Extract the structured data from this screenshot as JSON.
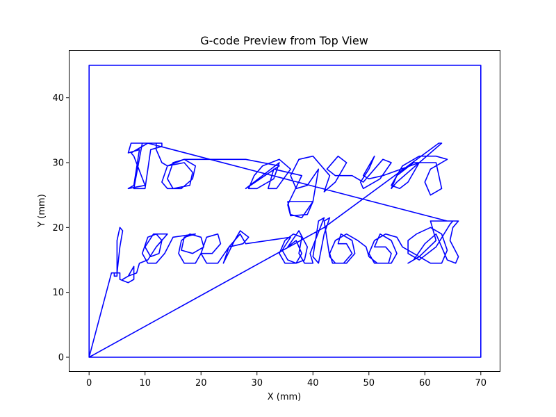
{
  "chart_data": {
    "type": "line",
    "title": "G-code Preview from Top View",
    "xlabel": "X (mm)",
    "ylabel": "Y (mm)",
    "xlim": [
      -3.5,
      73.5
    ],
    "ylim": [
      -2.25,
      47.25
    ],
    "grid": false,
    "legend": "none",
    "series_color": "#0000ff",
    "xticks": [
      0,
      10,
      20,
      30,
      40,
      50,
      60,
      70
    ],
    "yticks": [
      0,
      10,
      20,
      30,
      40
    ],
    "text_content": "To a great year ahead",
    "series": [
      {
        "points": [
          [
            0,
            0
          ],
          [
            0,
            45
          ],
          [
            70,
            45
          ],
          [
            70,
            0
          ],
          [
            0,
            0
          ],
          [
            42,
            20
          ],
          [
            62.5,
            33
          ],
          [
            63,
            33
          ],
          [
            55,
            27
          ],
          [
            54,
            26
          ],
          [
            55,
            28
          ],
          [
            56,
            29.5
          ],
          [
            59,
            31
          ],
          [
            62,
            31
          ],
          [
            64,
            30.5
          ],
          [
            61,
            29
          ],
          [
            60,
            27
          ],
          [
            61,
            25
          ],
          [
            63,
            26
          ],
          [
            62,
            30
          ],
          [
            58,
            30
          ],
          [
            55,
            28
          ],
          [
            54,
            26.5
          ],
          [
            55.5,
            26
          ],
          [
            57,
            27
          ],
          [
            59,
            30
          ],
          [
            52.5,
            28
          ],
          [
            50,
            27.5
          ],
          [
            49,
            28
          ],
          [
            51,
            31
          ],
          [
            50,
            29
          ],
          [
            48.5,
            27
          ],
          [
            49,
            26
          ],
          [
            52,
            27.5
          ],
          [
            54,
            30
          ],
          [
            52.5,
            30.5
          ],
          [
            51,
            29
          ],
          [
            49,
            27
          ],
          [
            47,
            28
          ],
          [
            44,
            28
          ],
          [
            42.5,
            29
          ],
          [
            44.5,
            31
          ],
          [
            46,
            30
          ],
          [
            44,
            27
          ],
          [
            42,
            25.5
          ],
          [
            43,
            28
          ],
          [
            40,
            31
          ],
          [
            37.5,
            30.5
          ],
          [
            36,
            28
          ],
          [
            37,
            26
          ],
          [
            39,
            26.5
          ],
          [
            41,
            29
          ],
          [
            40,
            24
          ],
          [
            38,
            21.5
          ],
          [
            36,
            22
          ],
          [
            35.5,
            24
          ],
          [
            40,
            24
          ],
          [
            39,
            22
          ],
          [
            36,
            21.8
          ],
          [
            35.5,
            23.5
          ],
          [
            38,
            28
          ],
          [
            33,
            29
          ],
          [
            32,
            26
          ],
          [
            33.5,
            26
          ],
          [
            36,
            29
          ],
          [
            34,
            30.5
          ],
          [
            31,
            29.5
          ],
          [
            29.5,
            28
          ],
          [
            28.5,
            26
          ],
          [
            30,
            26
          ],
          [
            33,
            27.5
          ],
          [
            34,
            30
          ],
          [
            28,
            26
          ],
          [
            34,
            29.5
          ],
          [
            28,
            30.5
          ],
          [
            22,
            30.5
          ],
          [
            17,
            30.5
          ],
          [
            14,
            29.5
          ],
          [
            13,
            27
          ],
          [
            14,
            26
          ],
          [
            16.5,
            26
          ],
          [
            18.5,
            27.5
          ],
          [
            19,
            29.5
          ],
          [
            17,
            30.5
          ],
          [
            15,
            30
          ],
          [
            14,
            27.5
          ],
          [
            15,
            26
          ],
          [
            18,
            26.5
          ],
          [
            18.5,
            28.5
          ],
          [
            17,
            30
          ],
          [
            14,
            29.5
          ],
          [
            13,
            30
          ],
          [
            12,
            32
          ],
          [
            12,
            33
          ],
          [
            9.5,
            33
          ],
          [
            8,
            26
          ],
          [
            10,
            26
          ],
          [
            11,
            32
          ],
          [
            13,
            32.5
          ],
          [
            13,
            33
          ],
          [
            7.5,
            33
          ],
          [
            7,
            31.5
          ],
          [
            9,
            32
          ],
          [
            8,
            26.5
          ],
          [
            7,
            26
          ],
          [
            10,
            26.5
          ],
          [
            8,
            31
          ],
          [
            7.5,
            31.5
          ],
          [
            10.5,
            33
          ],
          [
            64,
            21
          ],
          [
            66,
            21
          ],
          [
            65,
            20
          ],
          [
            64.5,
            18
          ],
          [
            66,
            15.5
          ],
          [
            65.5,
            14.5
          ],
          [
            64,
            15
          ],
          [
            62,
            19
          ],
          [
            60,
            17.5
          ],
          [
            58,
            15
          ],
          [
            57,
            14.5
          ],
          [
            59,
            15.5
          ],
          [
            62,
            18
          ],
          [
            61,
            21
          ],
          [
            65,
            21
          ],
          [
            64.5,
            20.5
          ],
          [
            62,
            17
          ],
          [
            59,
            15
          ],
          [
            57,
            16
          ],
          [
            57,
            18
          ],
          [
            58.5,
            19
          ],
          [
            61,
            20
          ],
          [
            63,
            19
          ],
          [
            64,
            16.5
          ],
          [
            63,
            14.5
          ],
          [
            61,
            14.5
          ],
          [
            56,
            17
          ],
          [
            55,
            18.5
          ],
          [
            53,
            19
          ],
          [
            51,
            18
          ],
          [
            50,
            16
          ],
          [
            51,
            14.5
          ],
          [
            53.5,
            14.5
          ],
          [
            54,
            16
          ],
          [
            53,
            17
          ],
          [
            51,
            17
          ],
          [
            52,
            19
          ],
          [
            54,
            18
          ],
          [
            55,
            16
          ],
          [
            54,
            14.5
          ],
          [
            51.5,
            14.5
          ],
          [
            50,
            15.5
          ],
          [
            49.5,
            17
          ],
          [
            48,
            18
          ],
          [
            46,
            19
          ],
          [
            44,
            18
          ],
          [
            43,
            16
          ],
          [
            43.5,
            14.5
          ],
          [
            45.5,
            14.5
          ],
          [
            47,
            16
          ],
          [
            46,
            17.5
          ],
          [
            44.5,
            17.5
          ],
          [
            45,
            19
          ],
          [
            47,
            18
          ],
          [
            47.5,
            16
          ],
          [
            46,
            14.5
          ],
          [
            44,
            14.5
          ],
          [
            43,
            15.5
          ],
          [
            42,
            21
          ],
          [
            43,
            21.5
          ],
          [
            42,
            19
          ],
          [
            41,
            14.5
          ],
          [
            40,
            15.5
          ],
          [
            41,
            21
          ],
          [
            42,
            21.5
          ],
          [
            39.5,
            16
          ],
          [
            40,
            14.5
          ],
          [
            38.5,
            14.5
          ],
          [
            37.5,
            16
          ],
          [
            38,
            18.5
          ],
          [
            36.5,
            19
          ],
          [
            35,
            18
          ],
          [
            34,
            16
          ],
          [
            35,
            14.5
          ],
          [
            37,
            14.5
          ],
          [
            38,
            16
          ],
          [
            37,
            18
          ],
          [
            35.5,
            17
          ],
          [
            37.5,
            19.5
          ],
          [
            39,
            17
          ],
          [
            38.5,
            15
          ],
          [
            37,
            14.5
          ],
          [
            35.5,
            15
          ],
          [
            34.5,
            16.5
          ],
          [
            36,
            18.5
          ],
          [
            28,
            17.5
          ],
          [
            27,
            19
          ],
          [
            25,
            17
          ],
          [
            24,
            14.5
          ],
          [
            26,
            18
          ],
          [
            27,
            19.5
          ],
          [
            28.5,
            18.5
          ],
          [
            27.5,
            17.5
          ],
          [
            25,
            17
          ],
          [
            23,
            14.5
          ],
          [
            21,
            14.5
          ],
          [
            20,
            16
          ],
          [
            21,
            18.5
          ],
          [
            23,
            19
          ],
          [
            23.5,
            17.5
          ],
          [
            22,
            16
          ],
          [
            20,
            16
          ],
          [
            19,
            14.5
          ],
          [
            17,
            14.5
          ],
          [
            16,
            16
          ],
          [
            16.5,
            18
          ],
          [
            18,
            19
          ],
          [
            20,
            18.5
          ],
          [
            20.5,
            17
          ],
          [
            18.5,
            16
          ],
          [
            16.5,
            16.5
          ],
          [
            17,
            18.5
          ],
          [
            19,
            19
          ],
          [
            15,
            18.5
          ],
          [
            13.5,
            16
          ],
          [
            12,
            14.5
          ],
          [
            10.5,
            14.5
          ],
          [
            9.5,
            16
          ],
          [
            10.5,
            18.5
          ],
          [
            12,
            19
          ],
          [
            13,
            18
          ],
          [
            12.5,
            16
          ],
          [
            11,
            15.5
          ],
          [
            10,
            17
          ],
          [
            11.5,
            19
          ],
          [
            14,
            19
          ],
          [
            12,
            17
          ],
          [
            10.5,
            15
          ],
          [
            9,
            14.5
          ],
          [
            8.5,
            13
          ],
          [
            7,
            12.5
          ],
          [
            6,
            12
          ],
          [
            7,
            12.5
          ],
          [
            8,
            14
          ],
          [
            8,
            12
          ],
          [
            7,
            11.5
          ],
          [
            5.5,
            12
          ],
          [
            5.5,
            13
          ],
          [
            4.5,
            13
          ],
          [
            4.5,
            12.5
          ],
          [
            5,
            12.5
          ],
          [
            5,
            18
          ],
          [
            5.5,
            20
          ],
          [
            6,
            19.5
          ],
          [
            5.5,
            17
          ],
          [
            5,
            13
          ],
          [
            4,
            13
          ],
          [
            0,
            0
          ]
        ]
      }
    ]
  }
}
